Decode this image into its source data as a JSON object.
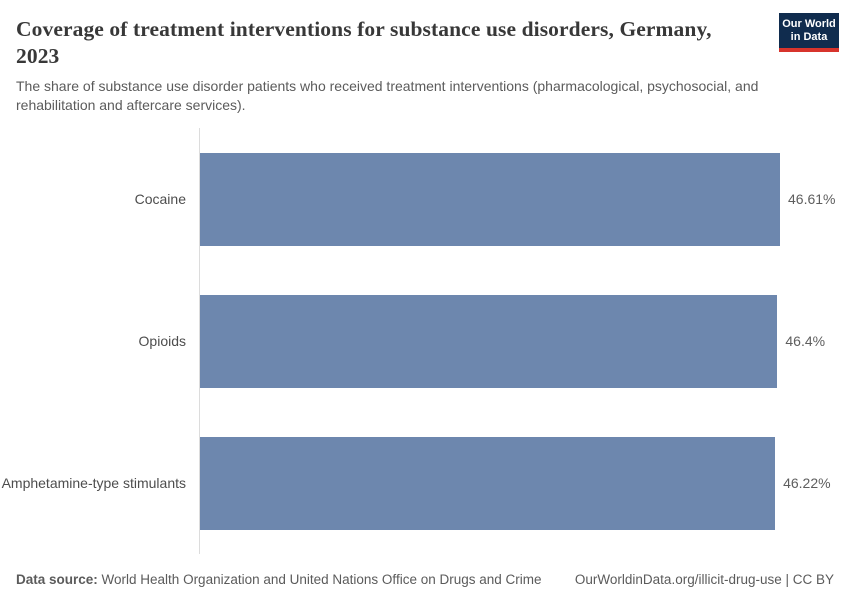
{
  "header": {
    "title": "Coverage of treatment interventions for substance use disorders, Germany, 2023",
    "subtitle": "The share of substance use disorder patients who received treatment interventions (pharmacological, psychosocial, and rehabilitation and aftercare services)."
  },
  "logo": {
    "line1": "Our World",
    "line2": "in Data"
  },
  "chart_data": {
    "type": "bar",
    "orientation": "horizontal",
    "title": "Coverage of treatment interventions for substance use disorders, Germany, 2023",
    "categories": [
      "Cocaine",
      "Opioids",
      "Amphetamine-type stimulants"
    ],
    "values": [
      46.61,
      46.4,
      46.22
    ],
    "value_labels": [
      "46.61%",
      "46.4%",
      "46.22%"
    ],
    "unit": "%",
    "xlim": [
      0,
      46.61
    ],
    "grid": false,
    "legend": false,
    "bar_color": "#6d87ae",
    "axis_line_color": "#dcdcdc"
  },
  "footer": {
    "data_source_label": "Data source:",
    "data_source_text": " World Health Organization and United Nations Office on Drugs and Crime",
    "credit": "OurWorldinData.org/illicit-drug-use | CC BY"
  },
  "colors": {
    "bar": "#6d87ae",
    "logo_bg": "#102c4e",
    "logo_red": "#d7342c",
    "title_text": "#383838"
  }
}
